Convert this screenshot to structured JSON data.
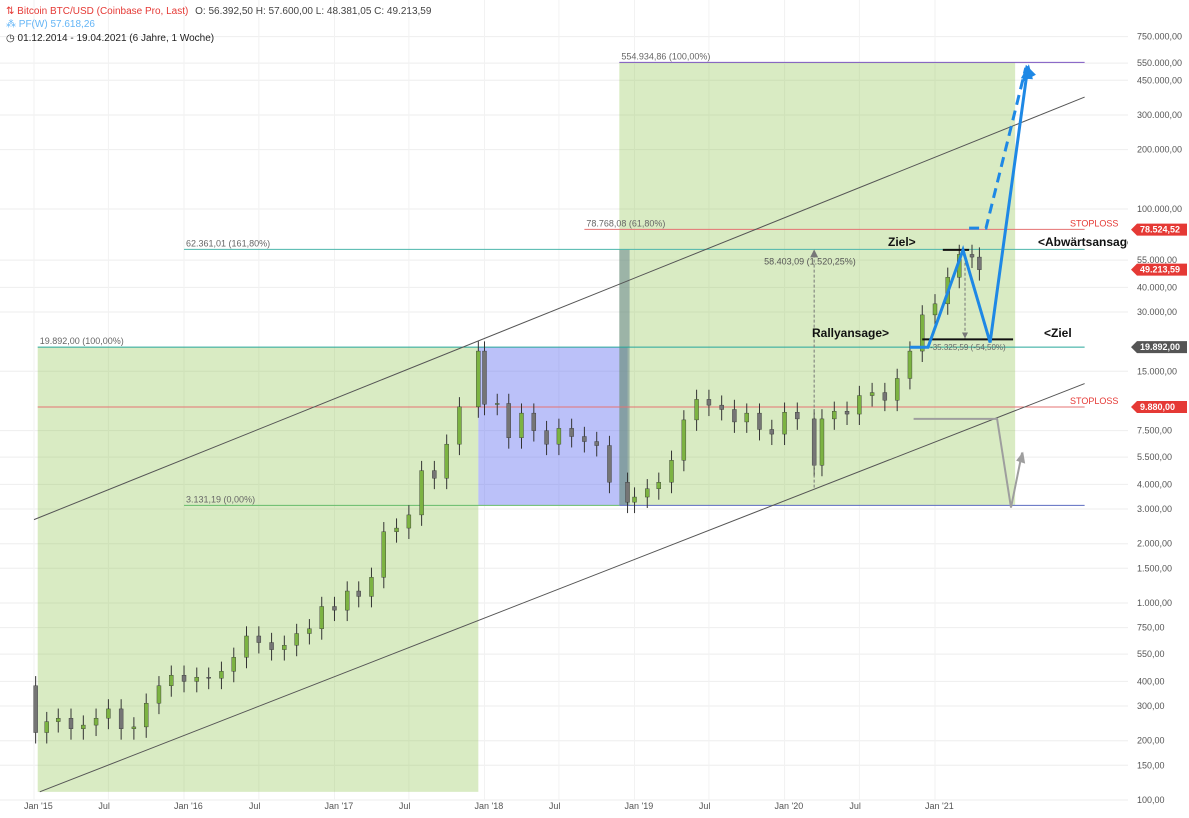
{
  "header": {
    "instrument": "Bitcoin BTC/USD (Coinbase Pro, Last)",
    "ohlc": "O: 56.392,50  H: 57.600,00  L: 48.381,05  C: 49.213,59",
    "pf_label": "PF(W)",
    "pf_value": "57.618,26",
    "period": "01.12.2014 - 19.04.2021  (6 Jahre, 1 Woche)"
  },
  "chart_data": {
    "type": "candlestick",
    "scale": "log",
    "ylim": [
      100,
      900000
    ],
    "x_ticks": [
      {
        "label": "Jan '15",
        "date": "2015-01-01"
      },
      {
        "label": "Jul",
        "date": "2015-07-01"
      },
      {
        "label": "Jan '16",
        "date": "2016-01-01"
      },
      {
        "label": "Jul",
        "date": "2016-07-01"
      },
      {
        "label": "Jan '17",
        "date": "2017-01-01"
      },
      {
        "label": "Jul",
        "date": "2017-07-01"
      },
      {
        "label": "Jan '18",
        "date": "2018-01-01"
      },
      {
        "label": "Jul",
        "date": "2018-07-01"
      },
      {
        "label": "Jan '19",
        "date": "2019-01-01"
      },
      {
        "label": "Jul",
        "date": "2019-07-01"
      },
      {
        "label": "Jan '20",
        "date": "2020-01-01"
      },
      {
        "label": "Jul",
        "date": "2020-07-01"
      },
      {
        "label": "Jan '21",
        "date": "2021-01-01"
      }
    ],
    "y_ticks": [
      {
        "v": 750000,
        "label": "750.000,00"
      },
      {
        "v": 550000,
        "label": "550.000,00"
      },
      {
        "v": 450000,
        "label": "450.000,00"
      },
      {
        "v": 300000,
        "label": "300.000,00"
      },
      {
        "v": 200000,
        "label": "200.000,00"
      },
      {
        "v": 100000,
        "label": "100.000,00"
      },
      {
        "v": 55000,
        "label": "55.000,00"
      },
      {
        "v": 40000,
        "label": "40.000,00"
      },
      {
        "v": 30000,
        "label": "30.000,00"
      },
      {
        "v": 15000,
        "label": "15.000,00"
      },
      {
        "v": 7500,
        "label": "7.500,00"
      },
      {
        "v": 5500,
        "label": "5.500,00"
      },
      {
        "v": 4000,
        "label": "4.000,00"
      },
      {
        "v": 3000,
        "label": "3.000,00"
      },
      {
        "v": 2000,
        "label": "2.000,00"
      },
      {
        "v": 1500,
        "label": "1.500,00"
      },
      {
        "v": 1000,
        "label": "1.000,00"
      },
      {
        "v": 750,
        "label": "750,00"
      },
      {
        "v": 550,
        "label": "550,00"
      },
      {
        "v": 400,
        "label": "400,00"
      },
      {
        "v": 300,
        "label": "300,00"
      },
      {
        "v": 200,
        "label": "200,00"
      },
      {
        "v": 150,
        "label": "150,00"
      },
      {
        "v": 100,
        "label": "100,00"
      }
    ],
    "price_tags": [
      {
        "v": 78524.52,
        "label": "78.524,52",
        "color": "#e53935"
      },
      {
        "v": 49213.59,
        "label": "49.213,59",
        "color": "#e53935"
      },
      {
        "v": 19892.0,
        "label": "19.892,00",
        "color": "#555555"
      },
      {
        "v": 9880.0,
        "label": "9.880,00",
        "color": "#e53935"
      }
    ],
    "zones": [
      {
        "start": "2015-01-10",
        "end": "2017-12-17",
        "bottom": 110,
        "top": 19892,
        "color": "green"
      },
      {
        "start": "2017-12-17",
        "end": "2018-12-15",
        "bottom": 3131,
        "top": 19892,
        "color": "blue"
      },
      {
        "start": "2018-11-25",
        "end": "2021-07-15",
        "bottom": 3131,
        "top": 554935,
        "color": "green"
      },
      {
        "start": "2018-11-25",
        "end": "2018-12-20",
        "bottom": 3131,
        "top": 62361,
        "color": "steel"
      }
    ],
    "hlines": [
      {
        "v": 554935,
        "start": "2018-11-25",
        "end": "2021-12-31",
        "color": "#7e57c2",
        "label": "554.934,86 (100,00%)"
      },
      {
        "v": 78768,
        "start": "2018-09-01",
        "end": "2021-12-31",
        "color": "#e57373",
        "label": "78.768,08 (61,80%)",
        "right_label": "STOPLOSS"
      },
      {
        "v": 62361,
        "start": "2016-01-01",
        "end": "2021-12-31",
        "color": "#4db6ac",
        "label": "62.361,01 (161,80%)"
      },
      {
        "v": 19892,
        "start": "2015-01-10",
        "end": "2021-12-31",
        "color": "#26a69a",
        "label": "19.892,00 (100,00%)"
      },
      {
        "v": 9880,
        "start": "2015-01-10",
        "end": "2021-12-31",
        "color": "#e57373",
        "label": "",
        "right_label": "STOPLOSS"
      },
      {
        "v": 3131,
        "start": "2016-01-01",
        "end": "2018-11-25",
        "color": "#66bb6a",
        "label": "3.131,19 (0,00%)"
      },
      {
        "v": 3131,
        "start": "2018-11-25",
        "end": "2021-12-31",
        "color": "#5c6bc0",
        "label": ""
      }
    ],
    "channel": {
      "upper": [
        {
          "date": "2015-01-01",
          "v": 2650
        },
        {
          "date": "2021-12-31",
          "v": 370000
        }
      ],
      "lower": [
        {
          "date": "2015-01-15",
          "v": 110
        },
        {
          "date": "2021-12-31",
          "v": 13000
        }
      ]
    },
    "measure": {
      "date": "2020-03-13",
      "from": 3850,
      "to": 62361,
      "label": "58.403,09 (1.520,25%)"
    },
    "retrace_label": "-35.325,59 (-54,50%)",
    "annotations": [
      "Ziel>",
      "<Abwärtsansage",
      "Rallyansage>",
      "<Ziel"
    ],
    "scenario_up": [
      {
        "date": "2020-11-01",
        "v": 19892
      },
      {
        "date": "2020-12-15",
        "v": 19892
      },
      {
        "date": "2021-03-10",
        "v": 62000
      },
      {
        "date": "2021-05-15",
        "v": 21000
      },
      {
        "date": "2021-08-15",
        "v": 530000
      }
    ],
    "scenario_dashed": [
      {
        "date": "2021-03-25",
        "v": 80000
      },
      {
        "date": "2021-05-05",
        "v": 80000
      },
      {
        "date": "2021-08-10",
        "v": 520000
      }
    ],
    "scenario_down": [
      {
        "date": "2020-11-10",
        "v": 8600
      },
      {
        "date": "2021-06-01",
        "v": 8600
      },
      {
        "date": "2021-07-05",
        "v": 3050
      },
      {
        "date": "2021-08-01",
        "v": 5800
      }
    ],
    "series": {
      "dates": [
        "2014-12-01",
        "2015-01-05",
        "2015-02-01",
        "2015-03-01",
        "2015-04-01",
        "2015-05-01",
        "2015-06-01",
        "2015-07-01",
        "2015-08-01",
        "2015-09-01",
        "2015-10-01",
        "2015-11-01",
        "2015-12-01",
        "2016-01-01",
        "2016-02-01",
        "2016-03-01",
        "2016-04-01",
        "2016-05-01",
        "2016-06-01",
        "2016-07-01",
        "2016-08-01",
        "2016-09-01",
        "2016-10-01",
        "2016-11-01",
        "2016-12-01",
        "2017-01-01",
        "2017-02-01",
        "2017-03-01",
        "2017-04-01",
        "2017-05-01",
        "2017-06-01",
        "2017-07-01",
        "2017-08-01",
        "2017-09-01",
        "2017-10-01",
        "2017-11-01",
        "2017-12-17",
        "2018-01-01",
        "2018-02-01",
        "2018-03-01",
        "2018-04-01",
        "2018-05-01",
        "2018-06-01",
        "2018-07-01",
        "2018-08-01",
        "2018-09-01",
        "2018-10-01",
        "2018-11-01",
        "2018-12-15",
        "2019-01-01",
        "2019-02-01",
        "2019-03-01",
        "2019-04-01",
        "2019-05-01",
        "2019-06-01",
        "2019-07-01",
        "2019-08-01",
        "2019-09-01",
        "2019-10-01",
        "2019-11-01",
        "2019-12-01",
        "2020-01-01",
        "2020-02-01",
        "2020-03-13",
        "2020-04-01",
        "2020-05-01",
        "2020-06-01",
        "2020-07-01",
        "2020-08-01",
        "2020-09-01",
        "2020-10-01",
        "2020-11-01",
        "2020-12-01",
        "2021-01-01",
        "2021-02-01",
        "2021-03-01",
        "2021-04-01",
        "2021-04-19"
      ],
      "closes": [
        380,
        220,
        250,
        260,
        230,
        240,
        260,
        290,
        230,
        235,
        310,
        380,
        430,
        400,
        420,
        415,
        450,
        530,
        680,
        630,
        580,
        610,
        700,
        740,
        960,
        920,
        1150,
        1080,
        1350,
        2300,
        2400,
        2800,
        4700,
        4300,
        6400,
        9900,
        19000,
        10200,
        10300,
        6900,
        9200,
        7500,
        6400,
        7700,
        7000,
        6600,
        6300,
        4100,
        3250,
        3450,
        3800,
        4100,
        5300,
        8500,
        10800,
        10100,
        9600,
        8300,
        9200,
        7600,
        7200,
        9300,
        8600,
        5000,
        8600,
        9400,
        9100,
        11300,
        11700,
        10700,
        13800,
        19000,
        29000,
        33000,
        45000,
        58800,
        57000,
        49213
      ]
    }
  }
}
